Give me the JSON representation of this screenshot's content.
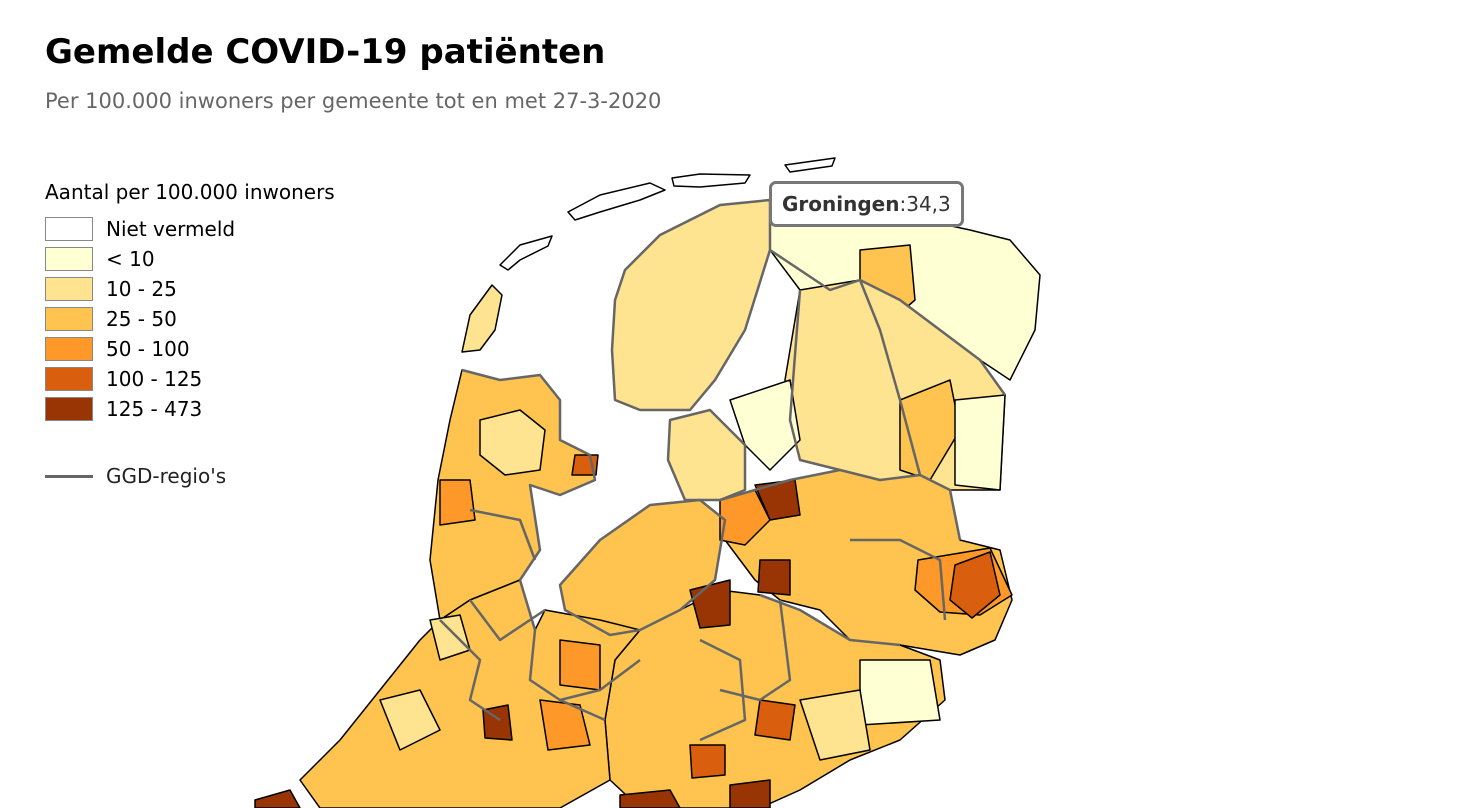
{
  "header": {
    "title": "Gemelde COVID-19 patiënten",
    "subtitle": "Per 100.000 inwoners per gemeente tot en met 27-3-2020"
  },
  "legend": {
    "title": "Aantal per 100.000 inwoners",
    "items": [
      {
        "label": "Niet vermeld",
        "color": "#ffffff"
      },
      {
        "label": "< 10",
        "color": "#ffffd4"
      },
      {
        "label": "10 - 25",
        "color": "#fee391"
      },
      {
        "label": "25 - 50",
        "color": "#fec44f"
      },
      {
        "label": "50 - 100",
        "color": "#fe9929"
      },
      {
        "label": "100 - 125",
        "color": "#d95f0e"
      },
      {
        "label": "125 - 473",
        "color": "#993404"
      }
    ],
    "ggd_label": "GGD-regio's",
    "ggd_color": "#666666"
  },
  "tooltip": {
    "name": "Groningen",
    "separator": ": ",
    "value": "34,3"
  }
}
